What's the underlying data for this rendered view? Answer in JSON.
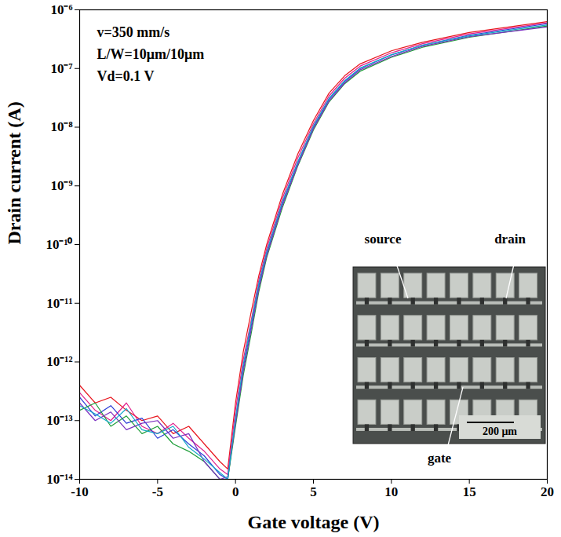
{
  "chart_data": {
    "type": "line",
    "xlabel": "Gate voltage (V)",
    "ylabel": "Drain current (A)",
    "annotations": [
      "v=350 mm/s",
      "L/W=10μm/10μm",
      "Vd=0.1 V"
    ],
    "inset": {
      "labels": [
        "source",
        "drain",
        "gate"
      ],
      "scale_bar": "200 μm"
    },
    "log": "y",
    "xlim": [
      -10,
      20
    ],
    "ylim": [
      1e-14,
      1e-06
    ],
    "xticks": [
      -10,
      -5,
      0,
      5,
      10,
      15,
      20
    ],
    "yticks": [
      {
        "value": 1e-14,
        "label": "10⁻¹⁴"
      },
      {
        "value": 1e-13,
        "label": "10⁻¹³"
      },
      {
        "value": 1e-12,
        "label": "10⁻¹²"
      },
      {
        "value": 1e-11,
        "label": "10⁻¹¹"
      },
      {
        "value": 1e-10,
        "label": "10⁻¹⁰"
      },
      {
        "value": 1e-09,
        "label": "10⁻⁹"
      },
      {
        "value": 1e-08,
        "label": "10⁻⁸"
      },
      {
        "value": 1e-07,
        "label": "10⁻⁷"
      },
      {
        "value": 1e-06,
        "label": "10⁻⁶"
      }
    ],
    "x": [
      -10,
      -9,
      -8,
      -7,
      -6,
      -5,
      -4,
      -3,
      -2,
      -1,
      -0.5,
      0,
      0.5,
      1,
      1.5,
      2,
      3,
      4,
      5,
      6,
      7,
      8,
      10,
      12,
      15,
      20
    ],
    "series": [
      {
        "color": "#e8141c",
        "values": [
          4e-13,
          2e-13,
          2.5e-13,
          1.5e-13,
          1e-13,
          1.2e-13,
          6e-14,
          8e-14,
          4e-14,
          2e-14,
          1.5e-14,
          2e-13,
          1.5e-12,
          7e-12,
          3e-11,
          1e-10,
          7e-10,
          3.5e-09,
          1.3e-08,
          3.8e-08,
          7.5e-08,
          1.2e-07,
          2e-07,
          2.8e-07,
          4.1e-07,
          6.3e-07
        ]
      },
      {
        "color": "#e0208c",
        "values": [
          3e-13,
          1.5e-13,
          1e-13,
          2e-13,
          8e-14,
          6e-14,
          9e-14,
          5e-14,
          3e-14,
          1.5e-14,
          1.2e-14,
          1.5e-13,
          1.1e-12,
          5e-12,
          2.5e-11,
          8.5e-11,
          6e-10,
          3e-09,
          1.15e-08,
          3.4e-08,
          6.8e-08,
          1.1e-07,
          1.85e-07,
          2.65e-07,
          3.9e-07,
          6e-07
        ]
      },
      {
        "color": "#2a3bd6",
        "values": [
          2.5e-13,
          1.2e-13,
          1.8e-13,
          9e-14,
          1.1e-13,
          5e-14,
          7e-14,
          4e-14,
          2.5e-14,
          1.2e-14,
          1e-14,
          1e-13,
          8e-13,
          4e-12,
          2e-11,
          7e-11,
          5e-10,
          2.5e-09,
          1e-08,
          3e-08,
          6e-08,
          1e-07,
          1.7e-07,
          2.5e-07,
          3.7e-07,
          5.8e-07
        ]
      },
      {
        "color": "#1f9e3a",
        "values": [
          1.5e-13,
          2e-13,
          8e-14,
          1.2e-13,
          6e-14,
          8e-14,
          4e-14,
          3e-14,
          2e-14,
          1e-14,
          1e-14,
          8e-14,
          6e-13,
          3e-12,
          1.6e-11,
          6e-11,
          4.2e-10,
          2.2e-09,
          9e-09,
          2.7e-08,
          5.5e-08,
          9e-08,
          1.55e-07,
          2.3e-07,
          3.4e-07,
          5.3e-07
        ]
      },
      {
        "color": "#7a2fc0",
        "values": [
          2e-13,
          1e-13,
          1.4e-13,
          7e-14,
          9e-14,
          1e-13,
          5e-14,
          6e-14,
          2e-14,
          1e-14,
          1.1e-14,
          9e-14,
          7e-13,
          3.5e-12,
          1.8e-11,
          6.5e-11,
          4.6e-10,
          2.3e-09,
          9.5e-09,
          2.8e-08,
          5.7e-08,
          9.5e-08,
          1.6e-07,
          2.4e-07,
          3.5e-07,
          5.1e-07
        ]
      },
      {
        "color": "#14a8c8",
        "values": [
          1.8e-13,
          1.3e-13,
          9e-14,
          1.6e-13,
          7e-14,
          6e-14,
          8e-14,
          3.5e-14,
          2.2e-14,
          1.3e-14,
          1e-14,
          1.1e-13,
          9e-13,
          4.5e-12,
          2.2e-11,
          7.5e-11,
          5.3e-10,
          2.6e-09,
          1.05e-08,
          3.1e-08,
          6.2e-08,
          1.02e-07,
          1.72e-07,
          2.5e-07,
          3.6e-07,
          5.5e-07
        ]
      }
    ]
  }
}
